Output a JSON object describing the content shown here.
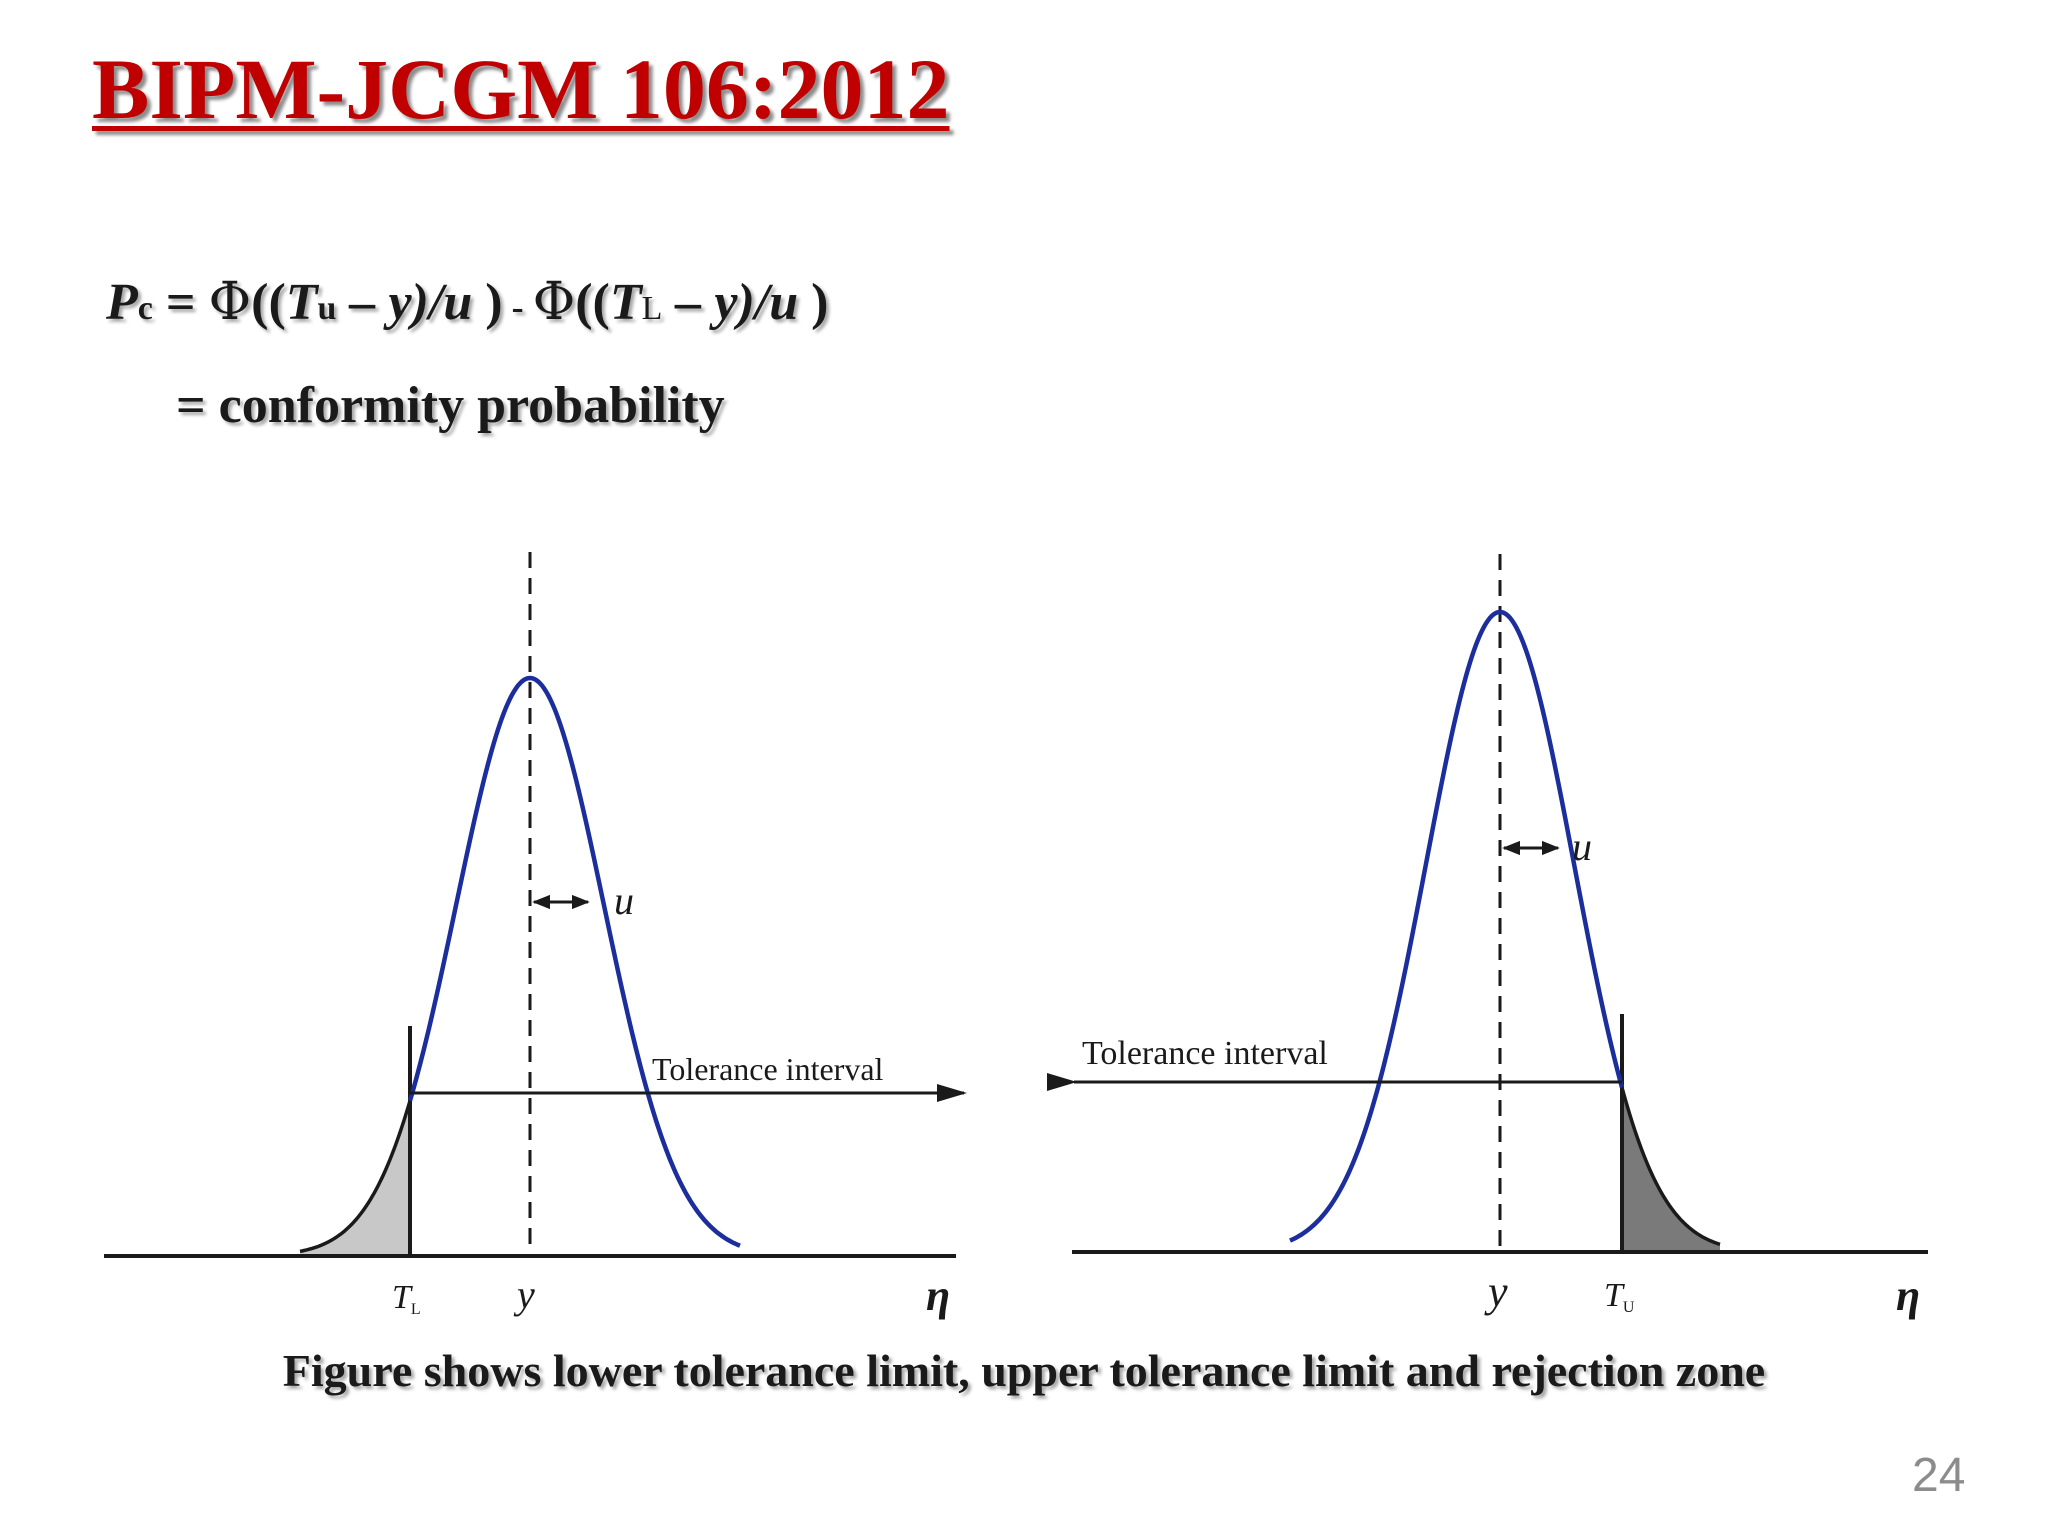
{
  "slide": {
    "title": "BIPM-JCGM 106:2012",
    "formula": {
      "lhs": "P",
      "lhs_sub": "c",
      "eq": " = ",
      "phi1": "Φ",
      "open1": "((",
      "t1": "T",
      "t1_sub": "u",
      "mid1": " – y)/u ",
      "close1": ")",
      "minus": " - ",
      "phi2": "Φ",
      "open2": "((",
      "t2": "T",
      "t2_sub": "L",
      "mid2": " – y)/u ",
      "close2": ")"
    },
    "formula_meaning": "= conformity probability",
    "caption": "Figure shows lower tolerance limit, upper tolerance limit and rejection zone",
    "page_number": "24"
  },
  "figures": {
    "lower": {
      "tolerance_label": "Tolerance interval",
      "limit_label": "T",
      "limit_sub": "L",
      "mean_label": "y",
      "sigma_label": "u",
      "axis_label": "η"
    },
    "upper": {
      "tolerance_label": "Tolerance interval",
      "limit_label": "T",
      "limit_sub": "U",
      "mean_label": "y",
      "sigma_label": "u",
      "axis_label": "η"
    }
  },
  "colors": {
    "title": "#c00000",
    "curve": "#1c2e9c",
    "rejection_fill_lower": "#c8c8c8",
    "rejection_fill_upper": "#7a7a7a"
  }
}
